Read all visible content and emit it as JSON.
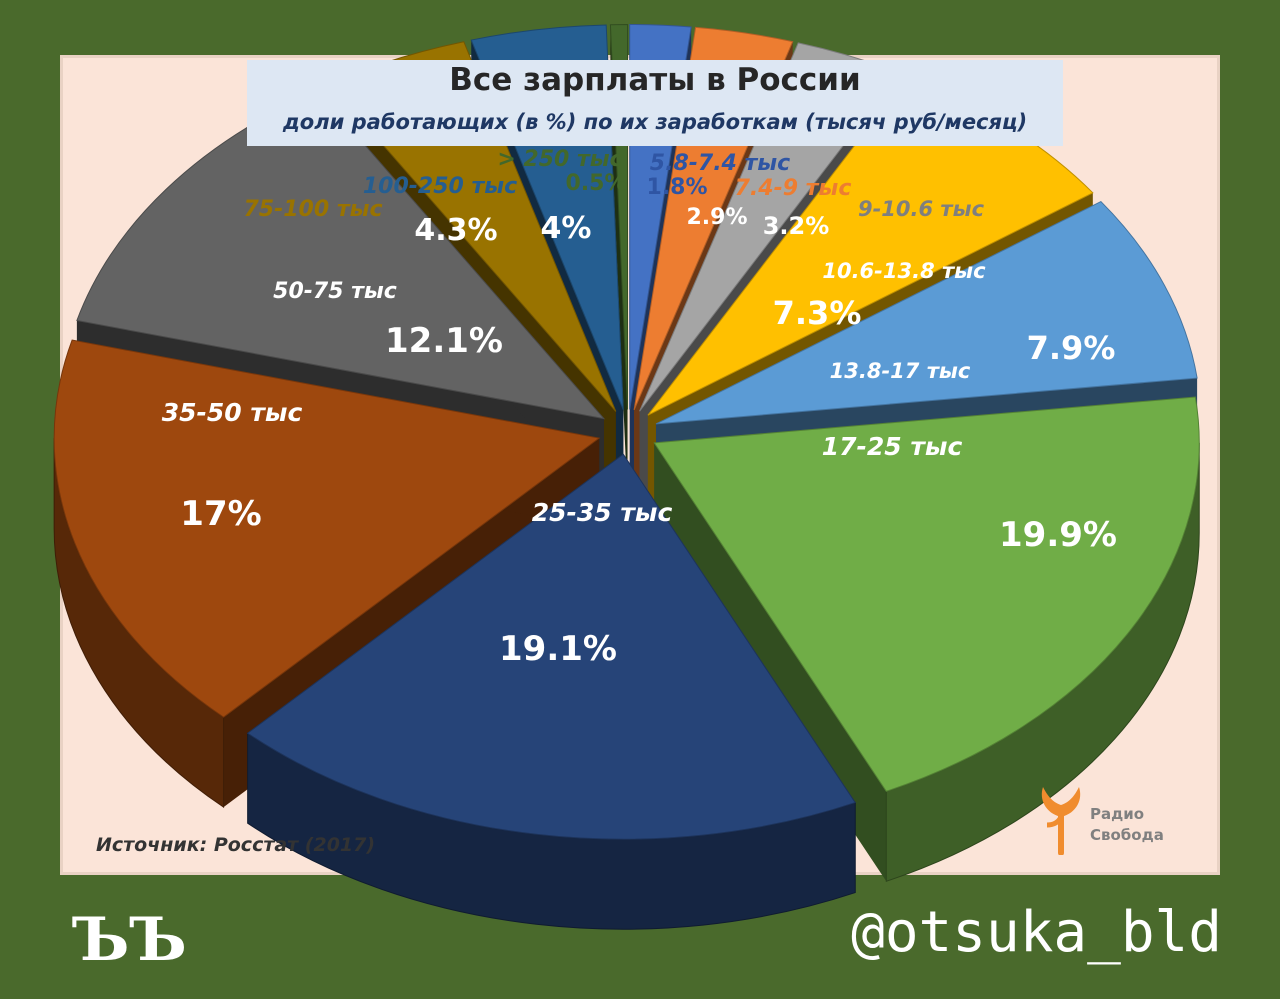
{
  "chart_data": {
    "type": "pie",
    "title": "Все зарплаты в России",
    "subtitle": "доли работающих (в %) по их заработкам (тысяч руб/месяц)",
    "slices": [
      {
        "label": "5.8-7.4 тыс",
        "value": 1.8,
        "value_label": "1.8%",
        "color": "#4472c4"
      },
      {
        "label": "7.4-9 тыс",
        "value": 2.9,
        "value_label": "2.9%",
        "color": "#ed7d31"
      },
      {
        "label": "9-10.6 тыс",
        "value": 3.2,
        "value_label": "3.2%",
        "color": "#a5a5a5"
      },
      {
        "label": "10.6-13.8 тыс",
        "value": 7.3,
        "value_label": "7.3%",
        "color": "#ffc000"
      },
      {
        "label": "13.8-17 тыс",
        "value": 7.9,
        "value_label": "7.9%",
        "color": "#5b9bd5"
      },
      {
        "label": "17-25 тыс",
        "value": 19.9,
        "value_label": "19.9%",
        "color": "#70ad47"
      },
      {
        "label": "25-35 тыс",
        "value": 19.1,
        "value_label": "19.1%",
        "color": "#264478"
      },
      {
        "label": "35-50 тыс",
        "value": 17,
        "value_label": "17%",
        "color": "#9e480e"
      },
      {
        "label": "50-75 тыс",
        "value": 12.1,
        "value_label": "12.1%",
        "color": "#636363"
      },
      {
        "label": "75-100 тыс",
        "value": 4.3,
        "value_label": "4.3%",
        "color": "#997300"
      },
      {
        "label": "100-250 тыс",
        "value": 4,
        "value_label": "4%",
        "color": "#255e91"
      },
      {
        "label": "> 250 тыс",
        "value": 0.5,
        "value_label": "0.5%",
        "color": "#43682b"
      }
    ]
  },
  "source_note": "Источник: Росстат (2017)",
  "brand": {
    "name": "Радио\nСвобода",
    "logo_icon": "torch-logo-icon",
    "color": "#f08c2e"
  },
  "corner_mark": "ЪЪ",
  "handle": "@otsuka_bld"
}
